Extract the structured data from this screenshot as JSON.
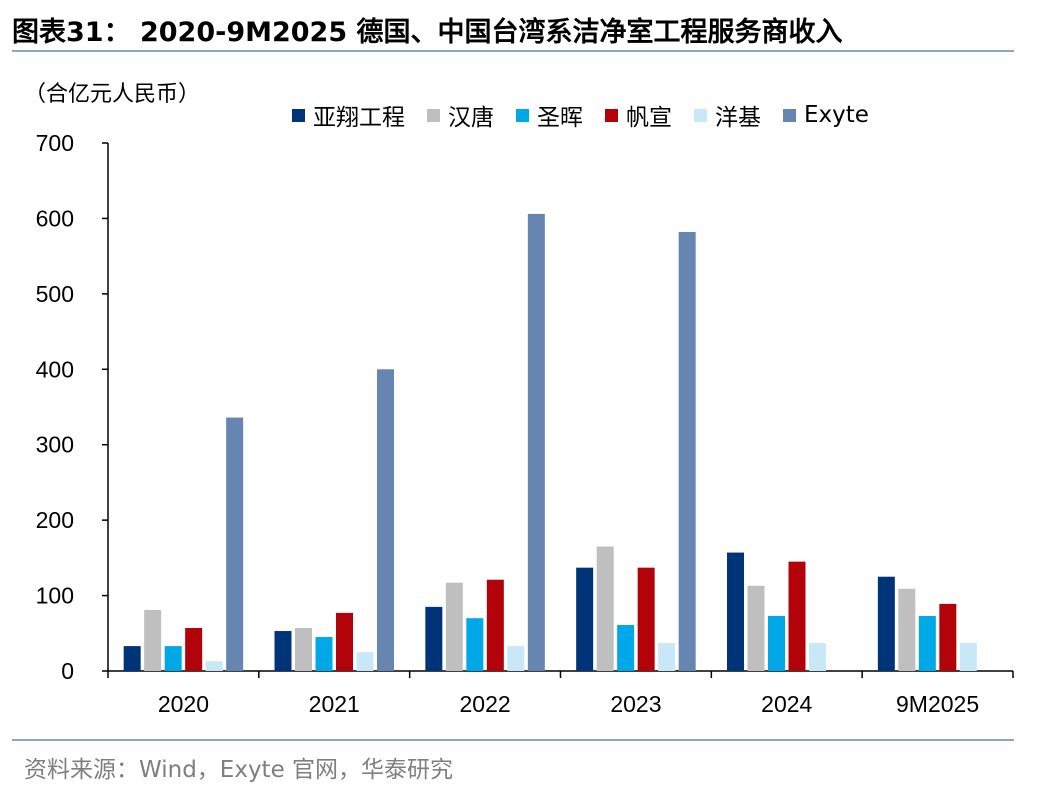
{
  "header": {
    "title": "图表31：  2020-9M2025 德国、中国台湾系洁净室工程服务商收入"
  },
  "footer": {
    "source": "资料来源：Wind，Exyte 官网，华泰研究"
  },
  "chart_data": {
    "type": "bar",
    "title": "2020-9M2025 德国、中国台湾系洁净室工程服务商收入",
    "ylabel": "（合亿元人民币）",
    "xlabel": "",
    "ylim": [
      0,
      700
    ],
    "yticks": [
      "0",
      "100",
      "200",
      "300",
      "400",
      "500",
      "600",
      "700"
    ],
    "categories": [
      "2020",
      "2021",
      "2022",
      "2023",
      "2024",
      "9M2025"
    ],
    "legend_position": "top",
    "series": [
      {
        "name": "亚翔工程",
        "color": "#003478",
        "values": [
          33,
          53,
          85,
          137,
          157,
          125
        ]
      },
      {
        "name": "汉唐",
        "color": "#bfbfbf",
        "values": [
          81,
          57,
          117,
          165,
          113,
          109
        ]
      },
      {
        "name": "圣晖",
        "color": "#00a8e8",
        "values": [
          33,
          45,
          70,
          61,
          73,
          73
        ]
      },
      {
        "name": "帆宣",
        "color": "#b2030b",
        "values": [
          57,
          77,
          121,
          137,
          145,
          89
        ]
      },
      {
        "name": "洋基",
        "color": "#c8e8f8",
        "values": [
          13,
          25,
          33,
          37,
          37,
          37
        ]
      },
      {
        "name": "Exyte",
        "color": "#6685b0",
        "values": [
          336,
          400,
          606,
          582,
          null,
          null
        ]
      }
    ]
  }
}
